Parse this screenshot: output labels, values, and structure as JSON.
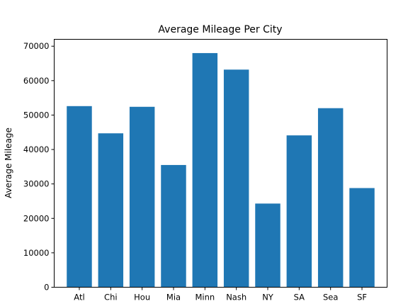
{
  "chart_data": {
    "type": "bar",
    "title": "Average Mileage Per City",
    "xlabel": "",
    "ylabel": "Average Mileage",
    "categories": [
      "Atl",
      "Chi",
      "Hou",
      "Mia",
      "Minn",
      "Nash",
      "NY",
      "SA",
      "Sea",
      "SF"
    ],
    "values": [
      52600,
      44700,
      52400,
      35500,
      68000,
      63200,
      24300,
      44100,
      52000,
      28800
    ],
    "ylim": [
      0,
      72000
    ],
    "yticks": [
      0,
      10000,
      20000,
      30000,
      40000,
      50000,
      60000,
      70000
    ],
    "bar_color": "#1f77b4",
    "grid": false,
    "legend": false
  }
}
